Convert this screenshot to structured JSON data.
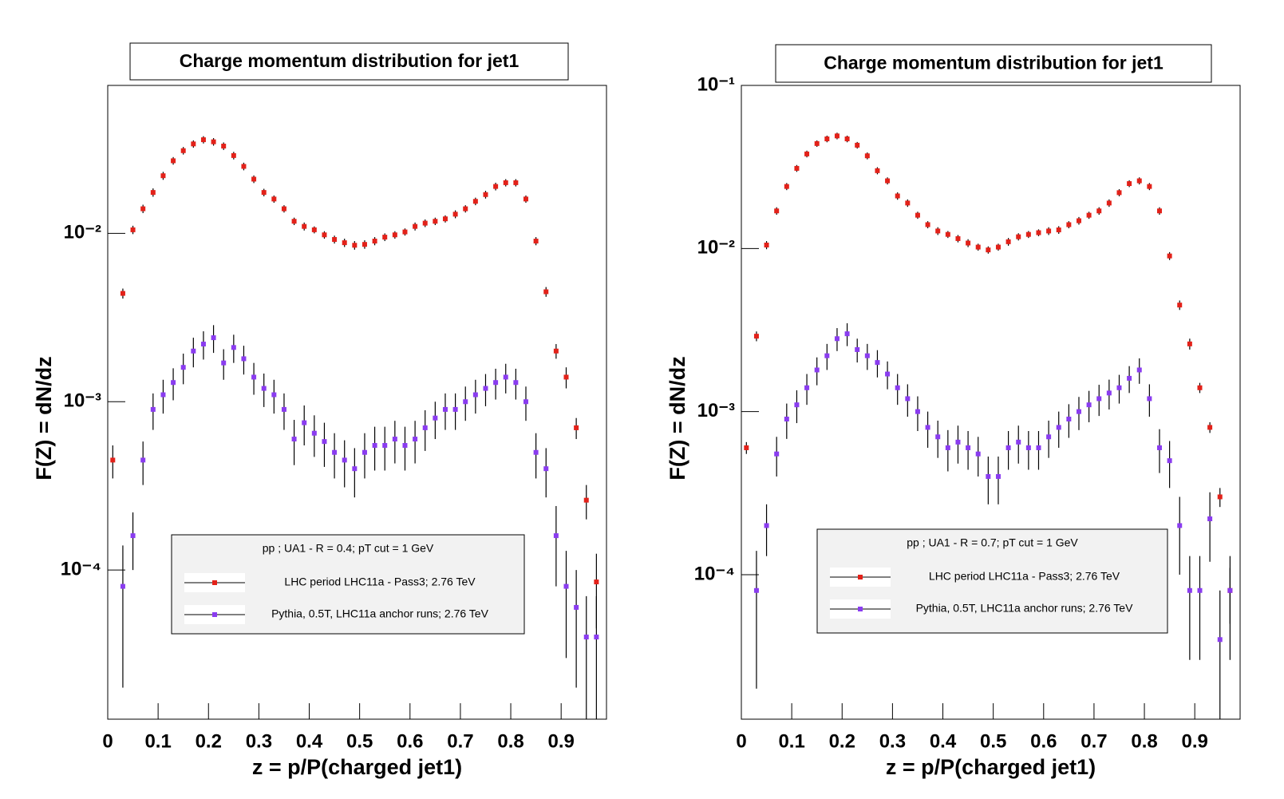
{
  "chart_data": [
    {
      "type": "scatter",
      "title": "Charge momentum distribution for jet1",
      "x_label": "z = p/P(charged jet1)",
      "y_label": "F(Z) = dN/dz",
      "legend_title": "pp ; UA1 - R = 0.4; pT cut = 1 GeV",
      "legend_position": "bottom-center",
      "log_y": true,
      "xlim": [
        0,
        0.99
      ],
      "xticks": [
        0,
        0.1,
        0.2,
        0.3,
        0.4,
        0.5,
        0.6,
        0.7,
        0.8,
        0.9
      ],
      "ylim": [
        1.3e-05,
        0.0757
      ],
      "yticks": [
        {
          "value": 0.0001,
          "label": "10⁻⁴"
        },
        {
          "value": 0.001,
          "label": "10⁻³"
        },
        {
          "value": 0.01,
          "label": "10⁻²"
        }
      ],
      "x": [
        0.01,
        0.03,
        0.05,
        0.07,
        0.09,
        0.11,
        0.13,
        0.15,
        0.17,
        0.19,
        0.21,
        0.23,
        0.25,
        0.27,
        0.29,
        0.31,
        0.33,
        0.35,
        0.37,
        0.39,
        0.41,
        0.43,
        0.45,
        0.47,
        0.49,
        0.51,
        0.53,
        0.55,
        0.57,
        0.59,
        0.61,
        0.63,
        0.65,
        0.67,
        0.69,
        0.71,
        0.73,
        0.75,
        0.77,
        0.79,
        0.81,
        0.83,
        0.85,
        0.87,
        0.89,
        0.91,
        0.93,
        0.95,
        0.97
      ],
      "series": [
        {
          "name": "LHC period LHC11a - Pass3; 2.76 TeV",
          "color": "#e32119",
          "values": [
            0.00045,
            0.0044,
            0.0105,
            0.014,
            0.0175,
            0.022,
            0.027,
            0.031,
            0.034,
            0.036,
            0.035,
            0.033,
            0.029,
            0.025,
            0.021,
            0.0175,
            0.016,
            0.014,
            0.0118,
            0.011,
            0.0105,
            0.0098,
            0.0092,
            0.0088,
            0.0085,
            0.0086,
            0.009,
            0.0095,
            0.0098,
            0.0102,
            0.011,
            0.0115,
            0.0118,
            0.0122,
            0.013,
            0.014,
            0.0155,
            0.017,
            0.019,
            0.02,
            0.02,
            0.016,
            0.009,
            0.0045,
            0.002,
            0.0014,
            0.0007,
            0.00026,
            8.5e-05
          ],
          "errors": [
            0.0001,
            0.0003,
            0.0006,
            0.0008,
            0.001,
            0.0012,
            0.0014,
            0.0016,
            0.0017,
            0.0018,
            0.0018,
            0.0017,
            0.0015,
            0.0013,
            0.0011,
            0.0009,
            0.0008,
            0.0007,
            0.0006,
            0.0006,
            0.0005,
            0.0005,
            0.0005,
            0.0005,
            0.0005,
            0.0005,
            0.0005,
            0.0005,
            0.0005,
            0.0005,
            0.0006,
            0.0006,
            0.0006,
            0.0006,
            0.0007,
            0.0007,
            0.0008,
            0.0009,
            0.001,
            0.001,
            0.001,
            0.0008,
            0.0005,
            0.0003,
            0.0002,
            0.0002,
            0.0001,
            6e-05,
            4e-05
          ]
        },
        {
          "name": "Pythia, 0.5T, LHC11a anchor runs; 2.76 TeV",
          "color": "#8a3cf0",
          "values": [
            null,
            8e-05,
            0.00016,
            0.00045,
            0.0009,
            0.0011,
            0.0013,
            0.0016,
            0.002,
            0.0022,
            0.0024,
            0.0017,
            0.0021,
            0.0018,
            0.0014,
            0.0012,
            0.0011,
            0.0009,
            0.0006,
            0.00075,
            0.00065,
            0.00058,
            0.0005,
            0.00045,
            0.0004,
            0.0005,
            0.00055,
            0.00055,
            0.0006,
            0.00055,
            0.0006,
            0.0007,
            0.0008,
            0.0009,
            0.0009,
            0.001,
            0.0011,
            0.0012,
            0.0013,
            0.0014,
            0.0013,
            0.001,
            0.0005,
            0.0004,
            0.00016,
            8e-05,
            6e-05,
            4e-05,
            4e-05
          ],
          "errors": [
            null,
            6e-05,
            6e-05,
            0.00013,
            0.00022,
            0.00025,
            0.00028,
            0.00033,
            0.0004,
            0.00042,
            0.00045,
            0.00035,
            0.0004,
            0.00035,
            0.0003,
            0.00027,
            0.00025,
            0.00022,
            0.00018,
            0.0002,
            0.00018,
            0.00017,
            0.00015,
            0.00014,
            0.00013,
            0.00015,
            0.00016,
            0.00016,
            0.00017,
            0.00016,
            0.00017,
            0.00019,
            0.0002,
            0.00022,
            0.00022,
            0.00023,
            0.00025,
            0.00026,
            0.00027,
            0.00028,
            0.00027,
            0.00023,
            0.00015,
            0.00013,
            8e-05,
            5e-05,
            4e-05,
            3e-05,
            3e-05
          ]
        }
      ]
    },
    {
      "type": "scatter",
      "title": "Charge momentum distribution for jet1",
      "x_label": "z = p/P(charged jet1)",
      "y_label": "F(Z) = dN/dz",
      "legend_title": "pp ; UA1 - R = 0.7; pT cut = 1 GeV",
      "legend_position": "bottom-center",
      "log_y": true,
      "xlim": [
        0,
        0.99
      ],
      "xticks": [
        0,
        0.1,
        0.2,
        0.3,
        0.4,
        0.5,
        0.6,
        0.7,
        0.8,
        0.9
      ],
      "ylim": [
        1.3e-05,
        0.1
      ],
      "yticks": [
        {
          "value": 0.0001,
          "label": "10⁻⁴"
        },
        {
          "value": 0.001,
          "label": "10⁻³"
        },
        {
          "value": 0.01,
          "label": "10⁻²"
        },
        {
          "value": 0.1,
          "label": "10⁻¹"
        }
      ],
      "x": [
        0.01,
        0.03,
        0.05,
        0.07,
        0.09,
        0.11,
        0.13,
        0.15,
        0.17,
        0.19,
        0.21,
        0.23,
        0.25,
        0.27,
        0.29,
        0.31,
        0.33,
        0.35,
        0.37,
        0.39,
        0.41,
        0.43,
        0.45,
        0.47,
        0.49,
        0.51,
        0.53,
        0.55,
        0.57,
        0.59,
        0.61,
        0.63,
        0.65,
        0.67,
        0.69,
        0.71,
        0.73,
        0.75,
        0.77,
        0.79,
        0.81,
        0.83,
        0.85,
        0.87,
        0.89,
        0.91,
        0.93,
        0.95,
        0.97
      ],
      "series": [
        {
          "name": "LHC period LHC11a - Pass3; 2.76 TeV",
          "color": "#e32119",
          "values": [
            0.0006,
            0.0029,
            0.0105,
            0.017,
            0.024,
            0.031,
            0.038,
            0.044,
            0.047,
            0.049,
            0.047,
            0.043,
            0.037,
            0.03,
            0.026,
            0.021,
            0.019,
            0.016,
            0.014,
            0.0128,
            0.0122,
            0.0115,
            0.0108,
            0.0102,
            0.0098,
            0.0102,
            0.011,
            0.0118,
            0.0122,
            0.0125,
            0.0128,
            0.013,
            0.014,
            0.0148,
            0.016,
            0.017,
            0.019,
            0.022,
            0.025,
            0.026,
            0.024,
            0.017,
            0.009,
            0.0045,
            0.0026,
            0.0014,
            0.0008,
            0.0003,
            8e-05
          ],
          "errors": [
            5e-05,
            0.0002,
            0.0006,
            0.0009,
            0.0012,
            0.0015,
            0.0018,
            0.002,
            0.0022,
            0.0023,
            0.0022,
            0.002,
            0.0018,
            0.0015,
            0.0013,
            0.0011,
            0.001,
            0.0008,
            0.0007,
            0.0007,
            0.0006,
            0.0006,
            0.0006,
            0.0005,
            0.0005,
            0.0005,
            0.0006,
            0.0006,
            0.0006,
            0.0006,
            0.0007,
            0.0007,
            0.0007,
            0.0008,
            0.0008,
            0.0009,
            0.001,
            0.0011,
            0.0012,
            0.0013,
            0.0012,
            0.0009,
            0.0005,
            0.0003,
            0.0002,
            0.0001,
            6e-05,
            4e-05,
            3e-05
          ]
        },
        {
          "name": "Pythia, 0.5T, LHC11a anchor runs; 2.76 TeV",
          "color": "#8a3cf0",
          "values": [
            null,
            8e-05,
            0.0002,
            0.00055,
            0.0009,
            0.0011,
            0.0014,
            0.0018,
            0.0022,
            0.0028,
            0.003,
            0.0024,
            0.0022,
            0.002,
            0.0017,
            0.0014,
            0.0012,
            0.001,
            0.0008,
            0.0007,
            0.0006,
            0.00065,
            0.0006,
            0.00055,
            0.0004,
            0.0004,
            0.0006,
            0.00065,
            0.0006,
            0.0006,
            0.0007,
            0.0008,
            0.0009,
            0.001,
            0.0011,
            0.0012,
            0.0013,
            0.0014,
            0.0016,
            0.0018,
            0.0012,
            0.0006,
            0.0005,
            0.0002,
            8e-05,
            8e-05,
            0.00022,
            4e-05,
            8e-05
          ],
          "errors": [
            null,
            6e-05,
            7e-05,
            0.00015,
            0.00022,
            0.00025,
            0.0003,
            0.00035,
            0.0004,
            0.00045,
            0.00048,
            0.0004,
            0.0004,
            0.00038,
            0.00033,
            0.0003,
            0.00027,
            0.00024,
            0.0002,
            0.00018,
            0.00017,
            0.00017,
            0.00016,
            0.00015,
            0.00013,
            0.00013,
            0.00016,
            0.00017,
            0.00016,
            0.00016,
            0.00018,
            0.0002,
            0.00021,
            0.00023,
            0.00024,
            0.00026,
            0.00027,
            0.00028,
            0.0003,
            0.00032,
            0.00027,
            0.00018,
            0.00016,
            0.0001,
            5e-05,
            5e-05,
            0.0001,
            4e-05,
            5e-05
          ]
        }
      ]
    }
  ]
}
